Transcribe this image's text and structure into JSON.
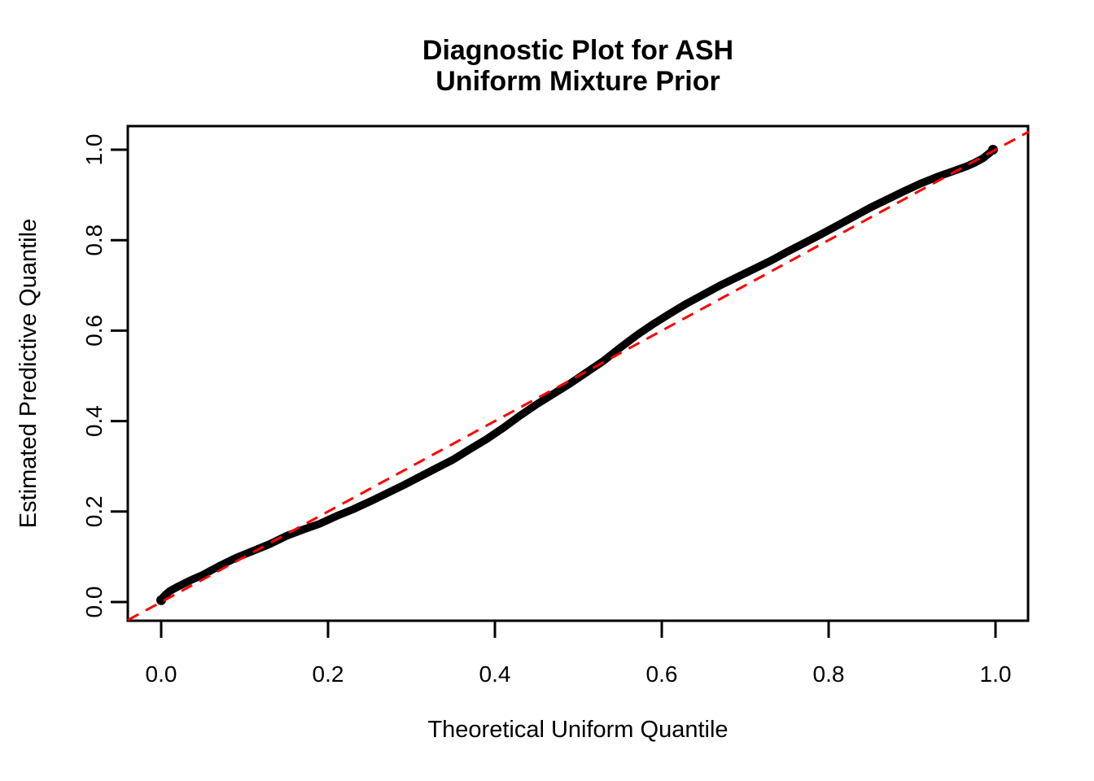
{
  "figure": {
    "title_line1": "Diagnostic Plot for ASH",
    "title_line2": "Uniform Mixture Prior"
  },
  "chart_data": {
    "type": "scatter",
    "title": "Diagnostic Plot for ASH Uniform Mixture Prior",
    "xlabel": "Theoretical Uniform Quantile",
    "ylabel": "Estimated Predictive Quantile",
    "xlim": [
      -0.04,
      1.04
    ],
    "ylim": [
      -0.04,
      1.05
    ],
    "grid": false,
    "legend": "none",
    "x_ticks": [
      0,
      0.2,
      0.4,
      0.6,
      0.8,
      1.0
    ],
    "x_tick_labels": [
      "0.0",
      "0.2",
      "0.4",
      "0.6",
      "0.8",
      "1.0"
    ],
    "y_ticks": [
      0,
      0.2,
      0.4,
      0.6,
      0.8,
      1.0
    ],
    "y_tick_labels": [
      "0.0",
      "0.2",
      "0.4",
      "0.6",
      "0.8",
      "1.0"
    ],
    "series": [
      {
        "name": "estimated-predictive-quantiles",
        "type": "dense-points-curve",
        "color": "#000000",
        "points": [
          [
            0.0,
            0.004
          ],
          [
            0.002,
            0.01
          ],
          [
            0.005,
            0.016
          ],
          [
            0.01,
            0.024
          ],
          [
            0.02,
            0.034
          ],
          [
            0.035,
            0.048
          ],
          [
            0.05,
            0.06
          ],
          [
            0.07,
            0.08
          ],
          [
            0.09,
            0.098
          ],
          [
            0.11,
            0.113
          ],
          [
            0.13,
            0.128
          ],
          [
            0.15,
            0.146
          ],
          [
            0.17,
            0.16
          ],
          [
            0.19,
            0.173
          ],
          [
            0.21,
            0.19
          ],
          [
            0.23,
            0.205
          ],
          [
            0.25,
            0.222
          ],
          [
            0.27,
            0.24
          ],
          [
            0.29,
            0.258
          ],
          [
            0.31,
            0.277
          ],
          [
            0.33,
            0.296
          ],
          [
            0.35,
            0.315
          ],
          [
            0.37,
            0.338
          ],
          [
            0.39,
            0.36
          ],
          [
            0.41,
            0.385
          ],
          [
            0.43,
            0.412
          ],
          [
            0.45,
            0.437
          ],
          [
            0.47,
            0.46
          ],
          [
            0.49,
            0.483
          ],
          [
            0.51,
            0.508
          ],
          [
            0.53,
            0.533
          ],
          [
            0.55,
            0.562
          ],
          [
            0.57,
            0.59
          ],
          [
            0.59,
            0.615
          ],
          [
            0.61,
            0.638
          ],
          [
            0.63,
            0.66
          ],
          [
            0.65,
            0.68
          ],
          [
            0.67,
            0.7
          ],
          [
            0.69,
            0.718
          ],
          [
            0.71,
            0.736
          ],
          [
            0.73,
            0.754
          ],
          [
            0.75,
            0.774
          ],
          [
            0.77,
            0.793
          ],
          [
            0.79,
            0.812
          ],
          [
            0.81,
            0.832
          ],
          [
            0.83,
            0.852
          ],
          [
            0.85,
            0.872
          ],
          [
            0.87,
            0.89
          ],
          [
            0.89,
            0.908
          ],
          [
            0.91,
            0.925
          ],
          [
            0.93,
            0.94
          ],
          [
            0.95,
            0.953
          ],
          [
            0.965,
            0.963
          ],
          [
            0.975,
            0.971
          ],
          [
            0.985,
            0.981
          ],
          [
            0.991,
            0.99
          ],
          [
            0.995,
            0.996
          ],
          [
            0.997,
            1.0
          ]
        ]
      },
      {
        "name": "identity-reference-line",
        "type": "dashed-line",
        "color": "#FF0000",
        "points": [
          [
            -0.04,
            -0.04
          ],
          [
            1.04,
            1.04
          ]
        ]
      }
    ]
  },
  "colors": {
    "points": "#000000",
    "reference_line": "#FF0000",
    "axis": "#000000",
    "background": "#FFFFFF"
  }
}
